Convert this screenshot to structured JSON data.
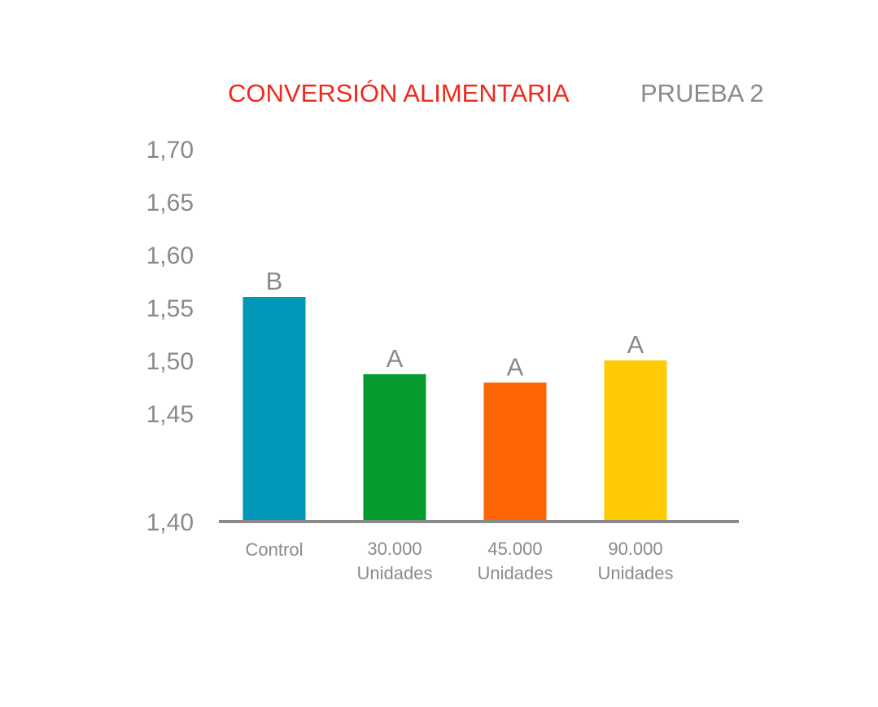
{
  "colors": {
    "title": "#ee2a1c",
    "subtitle": "#8a8a8a",
    "text": "#8a8a8a",
    "axis": "#8a8a8a"
  },
  "chart_data": {
    "type": "bar",
    "title": "CONVERSIÓN ALIMENTARIA",
    "subtitle": "PRUEBA 2",
    "xlabel": "",
    "ylabel": "",
    "ylim": [
      1.4,
      1.7
    ],
    "y_ticks": [
      {
        "value": 1.4,
        "label": "1,40"
      },
      {
        "value": 1.45,
        "label": "1,45"
      },
      {
        "value": 1.5,
        "label": "1,50"
      },
      {
        "value": 1.55,
        "label": "1,55"
      },
      {
        "value": 1.6,
        "label": "1,60"
      },
      {
        "value": 1.65,
        "label": "1,65"
      },
      {
        "value": 1.7,
        "label": "1,70"
      }
    ],
    "grid": false,
    "legend": "none",
    "bars": [
      {
        "category": [
          "Control"
        ],
        "value": 1.56,
        "label": "B",
        "color": "#0097b8"
      },
      {
        "category": [
          "30.000",
          "Unidades"
        ],
        "value": 1.487,
        "label": "A",
        "color": "#069b2e"
      },
      {
        "category": [
          "45.000",
          "Unidades"
        ],
        "value": 1.479,
        "label": "A",
        "color": "#fe6505"
      },
      {
        "category": [
          "90.000",
          "Unidades"
        ],
        "value": 1.5,
        "label": "A",
        "color": "#fecb05"
      }
    ]
  }
}
